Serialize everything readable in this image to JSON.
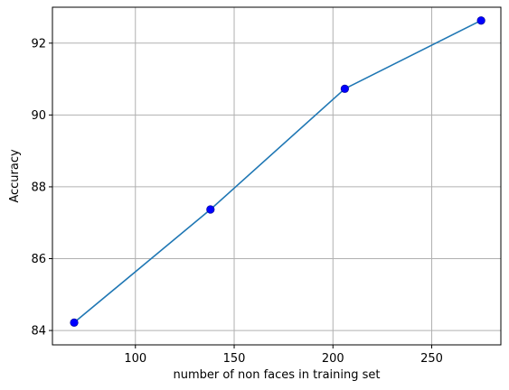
{
  "chart_data": {
    "type": "line",
    "title": "",
    "xlabel": "number of non faces in training set",
    "ylabel": "Accuracy",
    "xlim": [
      58,
      285
    ],
    "ylim": [
      83.6,
      93.0
    ],
    "xticks": [
      100,
      150,
      200,
      250
    ],
    "yticks": [
      84,
      86,
      88,
      90,
      92
    ],
    "grid": true,
    "series": [
      {
        "x": [
          69,
          138,
          206,
          275
        ],
        "y": [
          84.22,
          87.37,
          90.73,
          92.63
        ],
        "line_color": "#1f77b4",
        "marker_color": "#0000ff"
      }
    ]
  }
}
